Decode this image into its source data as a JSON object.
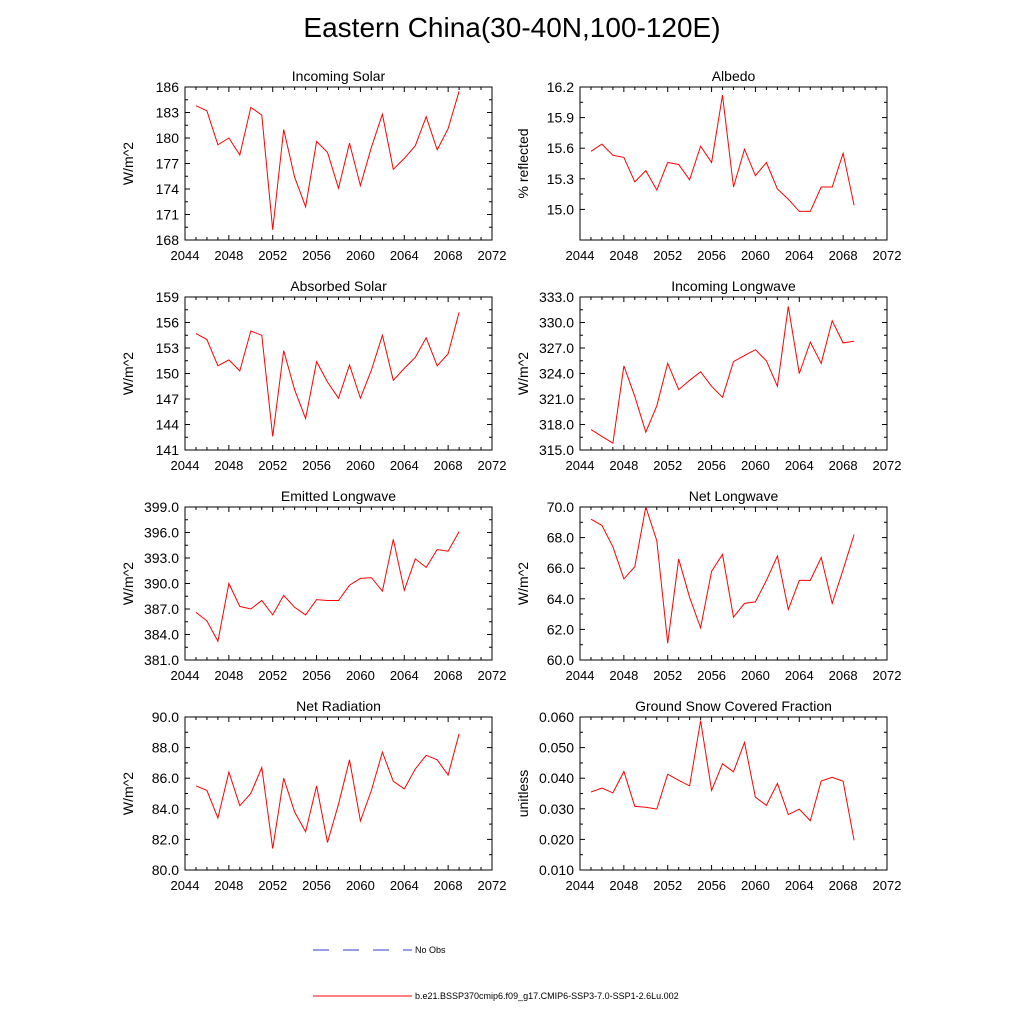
{
  "title": "Eastern China(30-40N,100-120E)",
  "legend": {
    "entries": [
      {
        "label": "No Obs",
        "color": "#3a3acc",
        "style": "dashed"
      },
      {
        "label": "b.e21.BSSP370cmip6.f09_g17.CMIP6-SSP3-7.0-SSP1-2.6Lu.002",
        "color": "#ff0000",
        "style": "solid"
      }
    ]
  },
  "colors": {
    "line": "#ff0000",
    "axis": "#000000",
    "obs": "#3a3acc"
  },
  "chart_data": [
    {
      "type": "line",
      "title": "Incoming Solar",
      "xlabel": "",
      "ylabel": "W/m^2",
      "xlim": [
        2044,
        2072
      ],
      "ylim": [
        168,
        186
      ],
      "xticks": [
        "2044",
        "2048",
        "2052",
        "2056",
        "2060",
        "2064",
        "2068",
        "2072"
      ],
      "yticks": [
        "168",
        "171",
        "174",
        "177",
        "180",
        "183",
        "186"
      ],
      "series": [
        {
          "name": "b.e21.BSSP370cmip6.f09_g17.CMIP6-SSP3-7.0-SSP1-2.6Lu.002",
          "x": [
            2045,
            2046,
            2047,
            2048,
            2049,
            2050,
            2051,
            2052,
            2053,
            2054,
            2055,
            2056,
            2057,
            2058,
            2059,
            2060,
            2061,
            2062,
            2063,
            2064,
            2065,
            2066,
            2067,
            2068,
            2069
          ],
          "y": [
            183.8,
            183.2,
            179.2,
            180.0,
            178.0,
            183.6,
            182.7,
            169.2,
            181.0,
            175.4,
            171.9,
            179.6,
            178.3,
            174.1,
            179.4,
            174.4,
            178.9,
            182.8,
            176.3,
            177.6,
            179.1,
            182.5,
            178.6,
            181.1,
            185.5
          ]
        }
      ]
    },
    {
      "type": "line",
      "title": "Albedo",
      "xlabel": "",
      "ylabel": "% reflected",
      "xlim": [
        2044,
        2072
      ],
      "ylim": [
        14.7,
        16.2
      ],
      "xticks": [
        "2044",
        "2048",
        "2052",
        "2056",
        "2060",
        "2064",
        "2068",
        "2072"
      ],
      "yticks": [
        "15.0",
        "15.3",
        "15.6",
        "15.9",
        "16.2"
      ],
      "series": [
        {
          "name": "b.e21.BSSP370cmip6.f09_g17.CMIP6-SSP3-7.0-SSP1-2.6Lu.002",
          "x": [
            2045,
            2046,
            2047,
            2048,
            2049,
            2050,
            2051,
            2052,
            2053,
            2054,
            2055,
            2056,
            2057,
            2058,
            2059,
            2060,
            2061,
            2062,
            2063,
            2064,
            2065,
            2066,
            2067,
            2068,
            2069
          ],
          "y": [
            15.57,
            15.64,
            15.53,
            15.51,
            15.27,
            15.38,
            15.19,
            15.46,
            15.44,
            15.29,
            15.62,
            15.46,
            16.12,
            15.22,
            15.59,
            15.33,
            15.46,
            15.2,
            15.1,
            14.98,
            14.98,
            15.22,
            15.22,
            15.55,
            15.04
          ]
        }
      ]
    },
    {
      "type": "line",
      "title": "Absorbed Solar",
      "xlabel": "",
      "ylabel": "W/m^2",
      "xlim": [
        2044,
        2072
      ],
      "ylim": [
        141,
        159
      ],
      "xticks": [
        "2044",
        "2048",
        "2052",
        "2056",
        "2060",
        "2064",
        "2068",
        "2072"
      ],
      "yticks": [
        "141",
        "144",
        "147",
        "150",
        "153",
        "156",
        "159"
      ],
      "series": [
        {
          "name": "b.e21.BSSP370cmip6.f09_g17.CMIP6-SSP3-7.0-SSP1-2.6Lu.002",
          "x": [
            2045,
            2046,
            2047,
            2048,
            2049,
            2050,
            2051,
            2052,
            2053,
            2054,
            2055,
            2056,
            2057,
            2058,
            2059,
            2060,
            2061,
            2062,
            2063,
            2064,
            2065,
            2066,
            2067,
            2068,
            2069
          ],
          "y": [
            154.7,
            154.0,
            150.9,
            151.6,
            150.3,
            155.0,
            154.5,
            142.6,
            152.7,
            148.1,
            144.7,
            151.4,
            149.0,
            147.1,
            151.0,
            147.1,
            150.4,
            154.5,
            149.2,
            150.6,
            151.9,
            154.2,
            150.9,
            152.3,
            157.2
          ]
        }
      ]
    },
    {
      "type": "line",
      "title": "Incoming Longwave",
      "xlabel": "",
      "ylabel": "W/m^2",
      "xlim": [
        2044,
        2072
      ],
      "ylim": [
        315.0,
        333.0
      ],
      "xticks": [
        "2044",
        "2048",
        "2052",
        "2056",
        "2060",
        "2064",
        "2068",
        "2072"
      ],
      "yticks": [
        "315.0",
        "318.0",
        "321.0",
        "324.0",
        "327.0",
        "330.0",
        "333.0"
      ],
      "series": [
        {
          "name": "b.e21.BSSP370cmip6.f09_g17.CMIP6-SSP3-7.0-SSP1-2.6Lu.002",
          "x": [
            2045,
            2046,
            2047,
            2048,
            2049,
            2050,
            2051,
            2052,
            2053,
            2054,
            2055,
            2056,
            2057,
            2058,
            2059,
            2060,
            2061,
            2062,
            2063,
            2064,
            2065,
            2066,
            2067,
            2068,
            2069
          ],
          "y": [
            317.4,
            316.6,
            315.8,
            324.9,
            321.3,
            317.1,
            320.2,
            325.2,
            322.1,
            323.2,
            324.2,
            322.5,
            321.2,
            325.4,
            326.1,
            326.8,
            325.5,
            322.5,
            331.9,
            324.0,
            327.7,
            325.2,
            330.2,
            327.6,
            327.8
          ]
        }
      ]
    },
    {
      "type": "line",
      "title": "Emitted Longwave",
      "xlabel": "",
      "ylabel": "W/m^2",
      "xlim": [
        2044,
        2072
      ],
      "ylim": [
        381.0,
        399.0
      ],
      "xticks": [
        "2044",
        "2048",
        "2052",
        "2056",
        "2060",
        "2064",
        "2068",
        "2072"
      ],
      "yticks": [
        "381.0",
        "384.0",
        "387.0",
        "390.0",
        "393.0",
        "396.0",
        "399.0"
      ],
      "series": [
        {
          "name": "b.e21.BSSP370cmip6.f09_g17.CMIP6-SSP3-7.0-SSP1-2.6Lu.002",
          "x": [
            2045,
            2046,
            2047,
            2048,
            2049,
            2050,
            2051,
            2052,
            2053,
            2054,
            2055,
            2056,
            2057,
            2058,
            2059,
            2060,
            2061,
            2062,
            2063,
            2064,
            2065,
            2066,
            2067,
            2068,
            2069
          ],
          "y": [
            386.6,
            385.6,
            383.2,
            390.0,
            387.3,
            387.0,
            388.0,
            386.3,
            388.6,
            387.2,
            386.3,
            388.1,
            388.0,
            388.0,
            389.8,
            390.6,
            390.7,
            389.1,
            395.2,
            389.2,
            392.9,
            391.9,
            394.0,
            393.8,
            396.1
          ]
        }
      ]
    },
    {
      "type": "line",
      "title": "Net Longwave",
      "xlabel": "",
      "ylabel": "W/m^2",
      "xlim": [
        2044,
        2072
      ],
      "ylim": [
        60.0,
        70.0
      ],
      "xticks": [
        "2044",
        "2048",
        "2052",
        "2056",
        "2060",
        "2064",
        "2068",
        "2072"
      ],
      "yticks": [
        "60.0",
        "62.0",
        "64.0",
        "66.0",
        "68.0",
        "70.0"
      ],
      "series": [
        {
          "name": "b.e21.BSSP370cmip6.f09_g17.CMIP6-SSP3-7.0-SSP1-2.6Lu.002",
          "x": [
            2045,
            2046,
            2047,
            2048,
            2049,
            2050,
            2051,
            2052,
            2053,
            2054,
            2055,
            2056,
            2057,
            2058,
            2059,
            2060,
            2061,
            2062,
            2063,
            2064,
            2065,
            2066,
            2067,
            2068,
            2069
          ],
          "y": [
            69.2,
            68.8,
            67.4,
            65.3,
            66.1,
            70.0,
            67.8,
            61.1,
            66.6,
            64.1,
            62.1,
            65.8,
            66.9,
            62.8,
            63.7,
            63.8,
            65.2,
            66.8,
            63.3,
            65.2,
            65.2,
            66.7,
            63.7,
            65.9,
            68.2
          ]
        }
      ]
    },
    {
      "type": "line",
      "title": "Net Radiation",
      "xlabel": "",
      "ylabel": "W/m^2",
      "xlim": [
        2044,
        2072
      ],
      "ylim": [
        80.0,
        90.0
      ],
      "xticks": [
        "2044",
        "2048",
        "2052",
        "2056",
        "2060",
        "2064",
        "2068",
        "2072"
      ],
      "yticks": [
        "80.0",
        "82.0",
        "84.0",
        "86.0",
        "88.0",
        "90.0"
      ],
      "series": [
        {
          "name": "b.e21.BSSP370cmip6.f09_g17.CMIP6-SSP3-7.0-SSP1-2.6Lu.002",
          "x": [
            2045,
            2046,
            2047,
            2048,
            2049,
            2050,
            2051,
            2052,
            2053,
            2054,
            2055,
            2056,
            2057,
            2058,
            2059,
            2060,
            2061,
            2062,
            2063,
            2064,
            2065,
            2066,
            2067,
            2068,
            2069
          ],
          "y": [
            85.5,
            85.2,
            83.4,
            86.4,
            84.2,
            85.0,
            86.7,
            81.4,
            86.0,
            83.8,
            82.5,
            85.5,
            81.8,
            84.3,
            87.2,
            83.2,
            85.2,
            87.7,
            85.8,
            85.3,
            86.6,
            87.5,
            87.2,
            86.2,
            88.9
          ]
        }
      ]
    },
    {
      "type": "line",
      "title": "Ground Snow Covered Fraction",
      "xlabel": "",
      "ylabel": "unitless",
      "xlim": [
        2044,
        2072
      ],
      "ylim": [
        0.01,
        0.06
      ],
      "xticks": [
        "2044",
        "2048",
        "2052",
        "2056",
        "2060",
        "2064",
        "2068",
        "2072"
      ],
      "yticks": [
        "0.010",
        "0.020",
        "0.030",
        "0.040",
        "0.050",
        "0.060"
      ],
      "series": [
        {
          "name": "b.e21.BSSP370cmip6.f09_g17.CMIP6-SSP3-7.0-SSP1-2.6Lu.002",
          "x": [
            2045,
            2046,
            2047,
            2048,
            2049,
            2050,
            2051,
            2052,
            2053,
            2054,
            2055,
            2056,
            2057,
            2058,
            2059,
            2060,
            2061,
            2062,
            2063,
            2064,
            2065,
            2066,
            2067,
            2068,
            2069
          ],
          "y": [
            0.0355,
            0.0368,
            0.0352,
            0.0422,
            0.0308,
            0.0305,
            0.0299,
            0.0413,
            0.0393,
            0.0375,
            0.0588,
            0.036,
            0.0447,
            0.0421,
            0.0517,
            0.0338,
            0.0311,
            0.0383,
            0.0281,
            0.0299,
            0.0261,
            0.0391,
            0.0403,
            0.039,
            0.0197
          ]
        }
      ]
    }
  ]
}
